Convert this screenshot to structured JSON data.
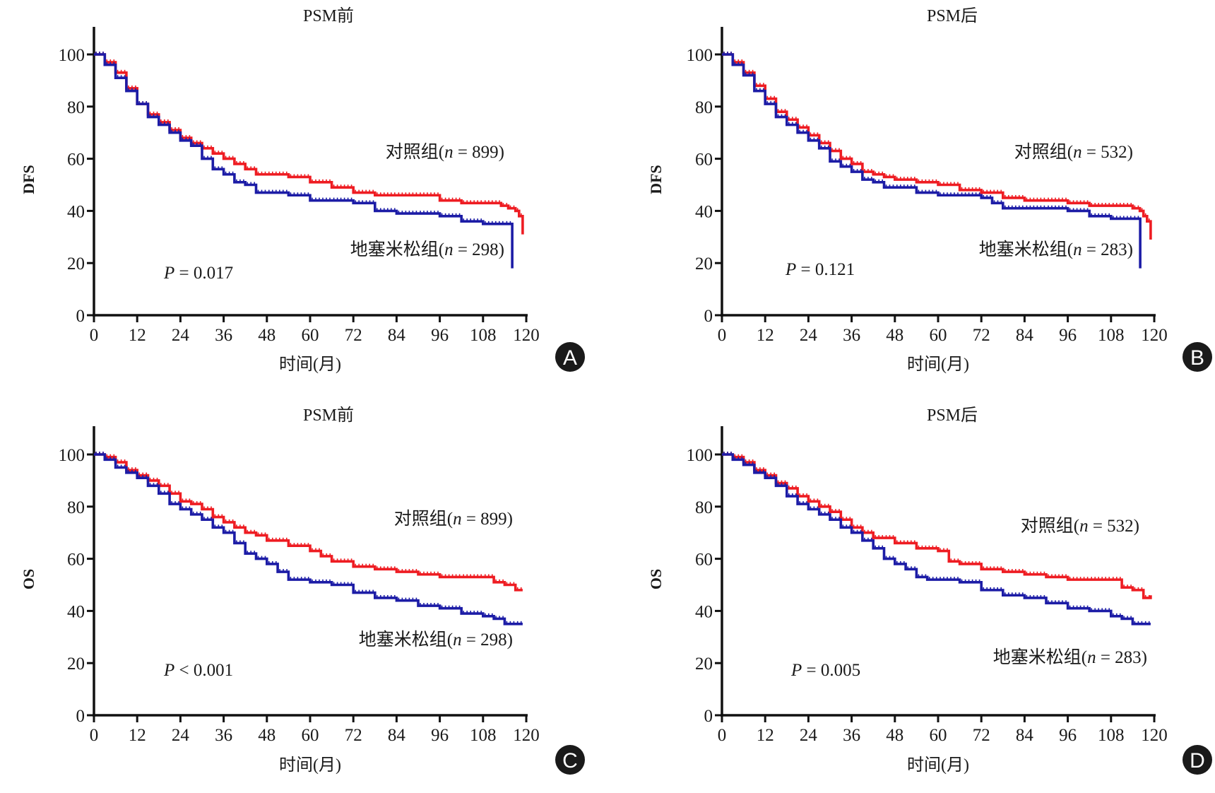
{
  "figure": {
    "x_axis_title": "时间(月)",
    "x_ticks": [
      "0",
      "12",
      "24",
      "36",
      "48",
      "60",
      "72",
      "84",
      "96",
      "108",
      "120"
    ],
    "y_ticks": [
      "0",
      "20",
      "40",
      "60",
      "80",
      "100"
    ],
    "colors": {
      "control": "#ee1c22",
      "dexamethasone": "#1c1ca6",
      "axis": "#111111",
      "badge": "#1a1a1a"
    }
  },
  "chart_data": [
    {
      "panel": "A",
      "type": "line",
      "title": "PSM前",
      "xlabel": "时间(月)",
      "ylabel": "DFS",
      "xlim": [
        0,
        120
      ],
      "ylim": [
        0,
        110
      ],
      "p_value_label": "P = 0.017",
      "p_prefix": "P",
      "p_rest": " = 0.017",
      "series": [
        {
          "name": "对照组",
          "n_label": "对照组(n = 899)",
          "label_pre": "对照组(",
          "label_n": "n",
          "label_post": " = 899)",
          "x": [
            0,
            3,
            6,
            9,
            12,
            15,
            18,
            21,
            24,
            27,
            30,
            33,
            36,
            39,
            42,
            45,
            48,
            54,
            60,
            66,
            72,
            78,
            84,
            90,
            96,
            102,
            108,
            111,
            113,
            115,
            117,
            118,
            119
          ],
          "y": [
            100,
            97,
            93,
            87,
            81,
            77,
            74,
            71,
            68,
            66,
            64,
            62,
            60,
            58,
            56,
            54,
            54,
            53,
            51,
            49,
            47,
            46,
            46,
            46,
            44,
            43,
            43,
            43,
            42,
            41,
            40,
            38,
            31
          ]
        },
        {
          "name": "地塞米松组",
          "n_label": "地塞米松组(n = 298)",
          "label_pre": "地塞米松组(",
          "label_n": "n",
          "label_post": " = 298)",
          "x": [
            0,
            3,
            6,
            9,
            12,
            15,
            18,
            21,
            24,
            27,
            30,
            33,
            36,
            39,
            42,
            45,
            48,
            54,
            60,
            66,
            72,
            75,
            78,
            84,
            90,
            96,
            102,
            108,
            114,
            116,
            116.1
          ],
          "y": [
            100,
            96,
            91,
            86,
            81,
            76,
            73,
            70,
            67,
            65,
            60,
            56,
            54,
            51,
            50,
            47,
            47,
            46,
            44,
            44,
            43,
            43,
            40,
            39,
            39,
            38,
            36,
            35,
            35,
            35,
            18
          ]
        }
      ]
    },
    {
      "panel": "B",
      "type": "line",
      "title": "PSM后",
      "xlabel": "时间(月)",
      "ylabel": "DFS",
      "xlim": [
        0,
        120
      ],
      "ylim": [
        0,
        110
      ],
      "p_value_label": "P = 0.121",
      "p_prefix": "P",
      "p_rest": " = 0.121",
      "series": [
        {
          "name": "对照组",
          "n_label": "对照组(n = 532)",
          "label_pre": "对照组(",
          "label_n": "n",
          "label_post": " = 532)",
          "x": [
            0,
            3,
            6,
            9,
            12,
            15,
            18,
            21,
            24,
            27,
            30,
            33,
            36,
            39,
            42,
            45,
            48,
            54,
            60,
            66,
            72,
            78,
            84,
            90,
            96,
            102,
            108,
            112,
            114,
            116,
            117,
            118,
            119
          ],
          "y": [
            100,
            97,
            93,
            88,
            83,
            78,
            75,
            72,
            69,
            66,
            63,
            60,
            58,
            55,
            54,
            53,
            52,
            51,
            50,
            48,
            47,
            45,
            44,
            44,
            43,
            42,
            42,
            42,
            41,
            40,
            38,
            36,
            29
          ]
        },
        {
          "name": "地塞米松组",
          "n_label": "地塞米松组(n = 283)",
          "label_pre": "地塞米松组(",
          "label_n": "n",
          "label_post": " = 283)",
          "x": [
            0,
            3,
            6,
            9,
            12,
            15,
            18,
            21,
            24,
            27,
            30,
            33,
            36,
            39,
            42,
            45,
            48,
            54,
            60,
            66,
            72,
            75,
            78,
            84,
            90,
            96,
            102,
            108,
            114,
            116,
            116.1
          ],
          "y": [
            100,
            96,
            92,
            86,
            81,
            76,
            73,
            70,
            67,
            64,
            59,
            57,
            55,
            52,
            51,
            49,
            49,
            47,
            46,
            46,
            45,
            43,
            41,
            41,
            41,
            40,
            38,
            37,
            37,
            37,
            18
          ]
        }
      ]
    },
    {
      "panel": "C",
      "type": "line",
      "title": "PSM前",
      "xlabel": "时间(月)",
      "ylabel": "OS",
      "xlim": [
        0,
        120
      ],
      "ylim": [
        0,
        110
      ],
      "p_value_label": "P < 0.001",
      "p_prefix": "P",
      "p_rest": " < 0.001",
      "series": [
        {
          "name": "对照组",
          "n_label": "对照组(n = 899)",
          "label_pre": "对照组(",
          "label_n": "n",
          "label_post": " = 899)",
          "x": [
            0,
            3,
            6,
            9,
            12,
            15,
            18,
            21,
            24,
            27,
            30,
            33,
            36,
            39,
            42,
            45,
            48,
            54,
            60,
            63,
            66,
            72,
            78,
            84,
            90,
            96,
            102,
            108,
            111,
            114,
            117,
            119
          ],
          "y": [
            100,
            99,
            97,
            94,
            92,
            90,
            88,
            85,
            82,
            81,
            79,
            76,
            74,
            72,
            70,
            69,
            67,
            65,
            63,
            61,
            59,
            57,
            56,
            55,
            54,
            53,
            53,
            53,
            51,
            50,
            48,
            48
          ]
        },
        {
          "name": "地塞米松组",
          "n_label": "地塞米松组(n = 298)",
          "label_pre": "地塞米松组(",
          "label_n": "n",
          "label_post": " = 298)",
          "x": [
            0,
            3,
            6,
            9,
            12,
            15,
            18,
            21,
            24,
            27,
            30,
            33,
            36,
            39,
            42,
            45,
            48,
            51,
            54,
            57,
            60,
            66,
            72,
            78,
            84,
            90,
            96,
            102,
            108,
            111,
            114,
            117,
            119
          ],
          "y": [
            100,
            98,
            95,
            93,
            91,
            88,
            85,
            81,
            79,
            77,
            75,
            72,
            70,
            66,
            62,
            60,
            58,
            55,
            52,
            52,
            51,
            50,
            47,
            45,
            44,
            42,
            41,
            39,
            38,
            37,
            35,
            35,
            35
          ]
        }
      ]
    },
    {
      "panel": "D",
      "type": "line",
      "title": "PSM后",
      "xlabel": "时间(月)",
      "ylabel": "OS",
      "xlim": [
        0,
        120
      ],
      "ylim": [
        0,
        110
      ],
      "p_value_label": "P = 0.005",
      "p_prefix": "P",
      "p_rest": " = 0.005",
      "series": [
        {
          "name": "对照组",
          "n_label": "对照组(n = 532)",
          "label_pre": "对照组(",
          "label_n": "n",
          "label_post": " = 532)",
          "x": [
            0,
            3,
            6,
            9,
            12,
            15,
            18,
            21,
            24,
            27,
            30,
            33,
            36,
            39,
            42,
            45,
            48,
            54,
            60,
            63,
            66,
            72,
            78,
            84,
            90,
            96,
            102,
            108,
            111,
            114,
            117,
            119
          ],
          "y": [
            100,
            99,
            97,
            94,
            92,
            89,
            87,
            84,
            82,
            80,
            78,
            75,
            72,
            70,
            68,
            68,
            66,
            64,
            63,
            59,
            58,
            56,
            55,
            54,
            53,
            52,
            52,
            52,
            49,
            48,
            45,
            46
          ]
        },
        {
          "name": "地塞米松组",
          "n_label": "地塞米松组(n = 283)",
          "label_pre": "地塞米松组(",
          "label_n": "n",
          "label_post": " = 283)",
          "x": [
            0,
            3,
            6,
            9,
            12,
            15,
            18,
            21,
            24,
            27,
            30,
            33,
            36,
            39,
            42,
            45,
            48,
            51,
            54,
            57,
            60,
            66,
            72,
            78,
            84,
            90,
            96,
            102,
            108,
            111,
            114,
            117,
            119
          ],
          "y": [
            100,
            98,
            96,
            93,
            91,
            88,
            84,
            81,
            79,
            77,
            75,
            72,
            70,
            67,
            64,
            60,
            58,
            56,
            53,
            52,
            52,
            51,
            48,
            46,
            45,
            43,
            41,
            40,
            38,
            37,
            35,
            35,
            35
          ]
        }
      ]
    }
  ],
  "badges": [
    "A",
    "B",
    "C",
    "D"
  ]
}
